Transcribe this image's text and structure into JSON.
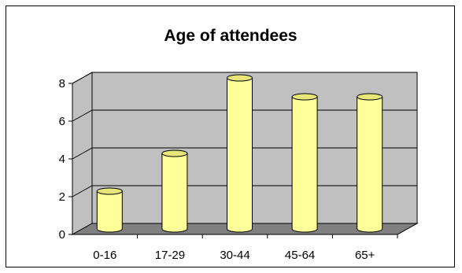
{
  "chart_data": {
    "type": "bar",
    "title": "Age of attendees",
    "xlabel": "",
    "ylabel": "",
    "categories": [
      "0-16",
      "17-29",
      "30-44",
      "45-64",
      "65+"
    ],
    "values": [
      2,
      4,
      8,
      7,
      7
    ],
    "ylim": [
      0,
      8
    ],
    "yticks": [
      "0",
      "2",
      "4",
      "6",
      "8"
    ],
    "grid": true,
    "legend": "none",
    "colors": {
      "bar_front": "#ffff99",
      "bar_top": "#e6e67a",
      "bar_outline": "#000000",
      "back_wall": "#c0c0c0",
      "floor": "#808080"
    }
  }
}
